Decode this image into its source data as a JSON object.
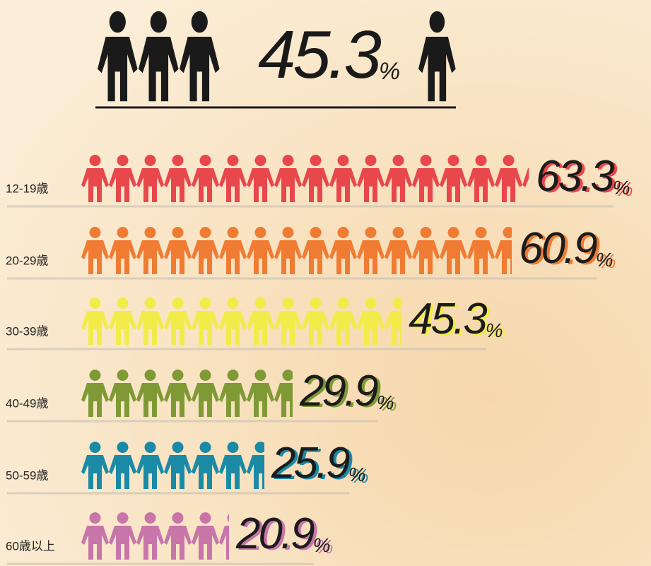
{
  "chart_data": {
    "type": "pictograph",
    "overall": 45.3,
    "unit": "%",
    "categories": [
      "12-19歳",
      "20-29歳",
      "30-39歳",
      "40-49歳",
      "50-59歳",
      "60歳以上"
    ],
    "values": [
      63.3,
      60.9,
      45.3,
      29.9,
      25.9,
      20.9
    ],
    "colors": [
      "#e8474c",
      "#f07b33",
      "#f2ec4a",
      "#7f9a35",
      "#1a8aa6",
      "#c875a9"
    ]
  }
}
